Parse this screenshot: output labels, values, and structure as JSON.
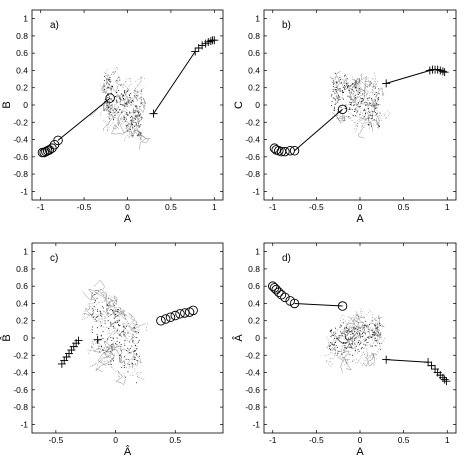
{
  "chart_data": [
    {
      "type": "scatter",
      "panel_label": "a)",
      "xlabel": "A",
      "ylabel": "B",
      "xlim": [
        -1.1,
        1.1
      ],
      "ylim": [
        -1.1,
        1.1
      ],
      "xticks": [
        "-1",
        "-0.5",
        "0",
        "0.5",
        "1"
      ],
      "yticks": [
        "-1",
        "-0.8",
        "-0.6",
        "-0.4",
        "-0.2",
        "0",
        "0.2",
        "0.4",
        "0.6",
        "0.8",
        "1"
      ],
      "grid": false,
      "series": [
        {
          "marker": "circle",
          "x": [
            -0.98,
            -0.96,
            -0.94,
            -0.92,
            -0.9,
            -0.87,
            -0.84,
            -0.8
          ],
          "y": [
            -0.55,
            -0.55,
            -0.54,
            -0.53,
            -0.52,
            -0.5,
            -0.46,
            -0.41
          ]
        },
        {
          "marker": "circle",
          "x": [
            -0.2
          ],
          "y": [
            0.08
          ]
        },
        {
          "marker": "plus",
          "x": [
            0.3
          ],
          "y": [
            -0.1
          ]
        },
        {
          "marker": "plus",
          "x": [
            0.78,
            0.82,
            0.86,
            0.9,
            0.93,
            0.96,
            0.98,
            1.0
          ],
          "y": [
            0.62,
            0.66,
            0.69,
            0.71,
            0.73,
            0.74,
            0.75,
            0.75
          ]
        },
        {
          "marker": "line",
          "x": [
            -0.8,
            -0.2
          ],
          "y": [
            -0.41,
            0.08
          ]
        },
        {
          "marker": "line",
          "x": [
            0.3,
            0.78
          ],
          "y": [
            -0.1,
            0.62
          ]
        }
      ],
      "cloud": {
        "center": [
          -0.05,
          0.0
        ],
        "spread": [
          0.22,
          0.32
        ],
        "slope": -1.2
      }
    },
    {
      "type": "scatter",
      "panel_label": "b)",
      "xlabel": "A",
      "ylabel": "C",
      "xlim": [
        -1.1,
        1.1
      ],
      "ylim": [
        -1.1,
        1.1
      ],
      "xticks": [
        "-1",
        "-0.5",
        "0",
        "0.5",
        "1"
      ],
      "yticks": [
        "-1",
        "-0.8",
        "-0.6",
        "-0.4",
        "-0.2",
        "0",
        "0.2",
        "0.4",
        "0.6",
        "0.8",
        "1"
      ],
      "grid": false,
      "series": [
        {
          "marker": "circle",
          "x": [
            -0.98,
            -0.96,
            -0.93,
            -0.9,
            -0.86,
            -0.8,
            -0.75
          ],
          "y": [
            -0.5,
            -0.52,
            -0.53,
            -0.54,
            -0.54,
            -0.53,
            -0.53
          ]
        },
        {
          "marker": "circle",
          "x": [
            -0.2
          ],
          "y": [
            -0.05
          ]
        },
        {
          "marker": "plus",
          "x": [
            0.3
          ],
          "y": [
            0.25
          ]
        },
        {
          "marker": "plus",
          "x": [
            0.8,
            0.83,
            0.86,
            0.89,
            0.92,
            0.95,
            0.97
          ],
          "y": [
            0.4,
            0.41,
            0.41,
            0.41,
            0.4,
            0.39,
            0.38
          ]
        },
        {
          "marker": "line",
          "x": [
            -0.75,
            -0.2
          ],
          "y": [
            -0.53,
            -0.05
          ]
        },
        {
          "marker": "line",
          "x": [
            0.3,
            0.8
          ],
          "y": [
            0.25,
            0.4
          ]
        }
      ],
      "cloud": {
        "center": [
          -0.05,
          0.05
        ],
        "spread": [
          0.28,
          0.3
        ],
        "slope": -0.8
      }
    },
    {
      "type": "scatter",
      "panel_label": "c)",
      "xlabel": "Â",
      "ylabel": "B̂",
      "xlim": [
        -0.7,
        0.9
      ],
      "ylim": [
        -1.1,
        1.1
      ],
      "xticks": [
        "-0.5",
        "0",
        "0.5"
      ],
      "yticks": [
        "-1",
        "-0.8",
        "-0.6",
        "-0.4",
        "-0.2",
        "0",
        "0.2",
        "0.4",
        "0.6",
        "0.8",
        "1"
      ],
      "grid": false,
      "series": [
        {
          "marker": "circle",
          "x": [
            0.38,
            0.42,
            0.46,
            0.5,
            0.54,
            0.58,
            0.62,
            0.65
          ],
          "y": [
            0.2,
            0.22,
            0.24,
            0.26,
            0.28,
            0.29,
            0.3,
            0.32
          ]
        },
        {
          "marker": "plus",
          "x": [
            -0.45,
            -0.43,
            -0.41,
            -0.39,
            -0.37,
            -0.35,
            -0.33,
            -0.31
          ],
          "y": [
            -0.3,
            -0.26,
            -0.22,
            -0.18,
            -0.14,
            -0.1,
            -0.06,
            -0.03
          ]
        },
        {
          "marker": "plus",
          "x": [
            -0.15
          ],
          "y": [
            -0.02
          ]
        }
      ],
      "cloud": {
        "center": [
          0.0,
          0.0
        ],
        "spread": [
          0.2,
          0.45
        ],
        "slope": -2.2
      }
    },
    {
      "type": "scatter",
      "panel_label": "d)",
      "xlabel": "A",
      "ylabel": "Â",
      "xlim": [
        -1.1,
        1.1
      ],
      "ylim": [
        -1.1,
        1.1
      ],
      "xticks": [
        "-1",
        "-0.5",
        "0",
        "0.5",
        "1"
      ],
      "yticks": [
        "-1",
        "-0.8",
        "-0.6",
        "-0.4",
        "-0.2",
        "0",
        "0.2",
        "0.4",
        "0.6",
        "0.8",
        "1"
      ],
      "grid": false,
      "series": [
        {
          "marker": "circle",
          "x": [
            -1.0,
            -0.98,
            -0.96,
            -0.93,
            -0.9,
            -0.86,
            -0.8,
            -0.75
          ],
          "y": [
            0.6,
            0.58,
            0.56,
            0.53,
            0.5,
            0.47,
            0.43,
            0.4
          ]
        },
        {
          "marker": "circle",
          "x": [
            -0.2
          ],
          "y": [
            0.37
          ]
        },
        {
          "marker": "plus",
          "x": [
            0.3
          ],
          "y": [
            -0.25
          ]
        },
        {
          "marker": "plus",
          "x": [
            0.78,
            0.82,
            0.86,
            0.89,
            0.92,
            0.95,
            0.97,
            0.99
          ],
          "y": [
            -0.28,
            -0.32,
            -0.36,
            -0.4,
            -0.43,
            -0.46,
            -0.48,
            -0.5
          ]
        },
        {
          "marker": "line",
          "x": [
            -0.75,
            -0.2,
            -0.2
          ],
          "y": [
            0.4,
            0.37,
            0.37
          ]
        },
        {
          "marker": "line",
          "x": [
            0.3,
            0.78
          ],
          "y": [
            -0.25,
            -0.28
          ]
        }
      ],
      "cloud": {
        "center": [
          -0.05,
          0.0
        ],
        "spread": [
          0.3,
          0.22
        ],
        "slope": 0.3
      }
    }
  ]
}
